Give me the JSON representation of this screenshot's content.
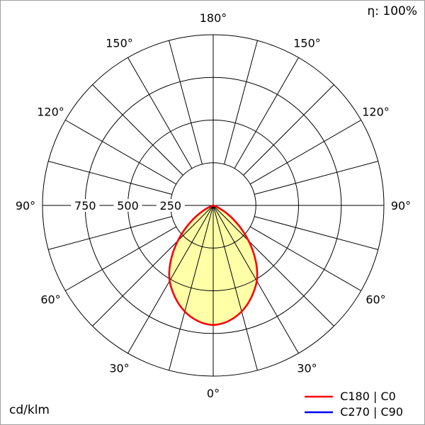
{
  "frame": {
    "background": "#ffffff",
    "border_color": "#a0a0a0"
  },
  "chart_data": {
    "type": "polar",
    "description": "Photometric polar luminous intensity distribution diagram",
    "unit_label": "cd/klm",
    "efficiency_label": "η: 100%",
    "grid_color": "#000000",
    "angle_axis": {
      "labels": [
        "0°",
        "30°",
        "60°",
        "90°",
        "120°",
        "150°",
        "180°"
      ],
      "spoke_step_deg": 15,
      "label_step_deg": 30,
      "zero_position": "bottom"
    },
    "radial_axis": {
      "ticks": [
        250,
        500,
        750,
        1000
      ],
      "tick_labels": [
        "750",
        "500",
        "250"
      ],
      "tick_label_values": [
        750,
        500,
        250
      ],
      "max": 1000
    },
    "series": [
      {
        "name": "C180 | C0",
        "color": "#ff0000",
        "fill": "#ffffa8",
        "symmetric": true,
        "gamma_deg": [
          0,
          5,
          10,
          15,
          20,
          25,
          30,
          35,
          40,
          45,
          50,
          55,
          60,
          65,
          70,
          75,
          80,
          85,
          90
        ],
        "values_cd_per_klm": [
          700,
          692,
          672,
          643,
          605,
          560,
          510,
          445,
          370,
          293,
          218,
          148,
          88,
          42,
          13,
          2,
          0,
          0,
          0
        ]
      },
      {
        "name": "C270 | C90",
        "color": "#0000ff",
        "fill": null,
        "symmetric": true,
        "gamma_deg": [
          0,
          5,
          10,
          15,
          20,
          25,
          30,
          35,
          40,
          45,
          50,
          55,
          60,
          65,
          70,
          75,
          80,
          85,
          90
        ],
        "values_cd_per_klm": [
          700,
          692,
          672,
          643,
          605,
          560,
          510,
          445,
          370,
          293,
          218,
          148,
          88,
          42,
          13,
          2,
          0,
          0,
          0
        ]
      }
    ],
    "legend": {
      "position": "bottom-right",
      "entries": [
        "C180 | C0",
        "C270 | C90"
      ]
    }
  }
}
